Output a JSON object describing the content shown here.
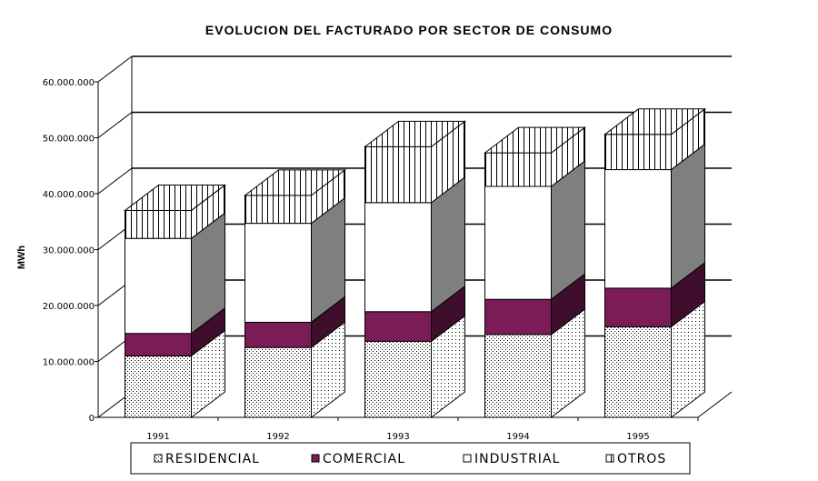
{
  "chart_data": {
    "type": "bar",
    "stacked": true,
    "three_d": true,
    "title": "EVOLUCION DEL FACTURADO POR SECTOR DE CONSUMO",
    "ylabel": "MWh",
    "xlabel": "",
    "categories": [
      "1991",
      "1992",
      "1993",
      "1994",
      "1995"
    ],
    "ylim": [
      0,
      60000000
    ],
    "y_ticks": [
      "0",
      "10.000.000",
      "20.000.000",
      "30.000.000",
      "40.000.000",
      "50.000.000",
      "60.000.000"
    ],
    "grid": true,
    "legend_position": "bottom",
    "series": [
      {
        "name": "RESIDENCIAL",
        "values": [
          11000000,
          12500000,
          13600000,
          14800000,
          16200000
        ],
        "color": "#ffffff",
        "pattern": "dots"
      },
      {
        "name": "COMERCIAL",
        "values": [
          4000000,
          4500000,
          5300000,
          6300000,
          6900000
        ],
        "color": "#7b1c56",
        "pattern": "solid"
      },
      {
        "name": "INDUSTRIAL",
        "values": [
          17000000,
          17700000,
          19500000,
          20200000,
          21200000
        ],
        "color": "#ffffff",
        "pattern": "none"
      },
      {
        "name": "OTROS",
        "values": [
          5000000,
          5000000,
          10000000,
          6000000,
          6300000
        ],
        "color": "#ffffff",
        "pattern": "vertical-lines"
      }
    ]
  }
}
